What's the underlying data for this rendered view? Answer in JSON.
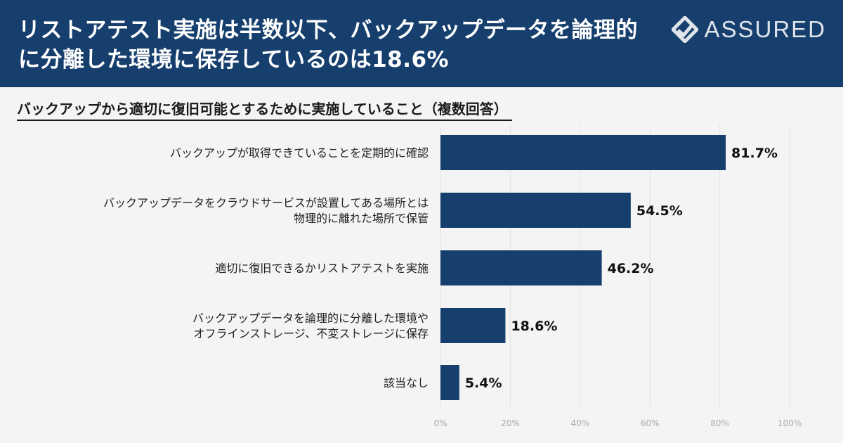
{
  "brand": {
    "name": "ASSURED",
    "logo_icon": "diamond-check-icon"
  },
  "colors": {
    "header_bg": "#163f6e",
    "bar": "#163f6e",
    "grid": "#e2e2e2"
  },
  "chart_data": {
    "type": "bar",
    "orientation": "horizontal",
    "title": "リストアテスト実施は半数以下、バックアップデータを論理的に分離した環境に保存しているのは18.6%",
    "subtitle": "バックアップから適切に復旧可能とするために実施していること（複数回答）",
    "categories": [
      [
        "バックアップが取得できていることを定期的に確認"
      ],
      [
        "バックアップデータをクラウドサービスが設置してある場所とは",
        "物理的に離れた場所で保管"
      ],
      [
        "適切に復旧できるかリストアテストを実施"
      ],
      [
        "バックアップデータを論理的に分離した環境や",
        "オフラインストレージ、不変ストレージに保存"
      ],
      [
        "該当なし"
      ]
    ],
    "values": [
      81.7,
      54.5,
      46.2,
      18.6,
      5.4
    ],
    "value_labels": [
      "81.7%",
      "54.5%",
      "46.2%",
      "18.6%",
      "5.4%"
    ],
    "xlim": [
      0,
      100
    ],
    "xticks": [
      0,
      20,
      40,
      60,
      80,
      100
    ],
    "xtick_labels": [
      "0%",
      "20%",
      "40%",
      "60%",
      "80%",
      "100%"
    ],
    "grid": true,
    "legend": "none"
  }
}
